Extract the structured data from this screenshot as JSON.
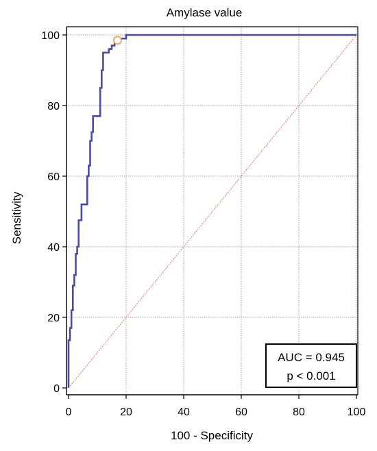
{
  "chart_data": {
    "type": "line",
    "title": "Amylase value",
    "xlabel": "100 - Specificity",
    "ylabel": "Sensitivity",
    "xlim": [
      0,
      100
    ],
    "ylim": [
      0,
      100
    ],
    "xticks": [
      0,
      20,
      40,
      60,
      80,
      100
    ],
    "yticks": [
      0,
      20,
      40,
      60,
      80,
      100
    ],
    "grid": true,
    "series": [
      {
        "name": "",
        "color": "#4a4aa8",
        "points": [
          [
            0,
            0
          ],
          [
            0,
            13.5
          ],
          [
            0.5,
            13.5
          ],
          [
            0.5,
            17
          ],
          [
            1,
            17
          ],
          [
            1,
            22
          ],
          [
            1.5,
            22
          ],
          [
            1.5,
            29
          ],
          [
            2,
            29
          ],
          [
            2,
            32
          ],
          [
            2.5,
            32
          ],
          [
            2.5,
            38
          ],
          [
            3,
            38
          ],
          [
            3,
            40
          ],
          [
            3.5,
            40
          ],
          [
            3.5,
            47.5
          ],
          [
            4.5,
            47.5
          ],
          [
            4.5,
            52
          ],
          [
            6.5,
            52
          ],
          [
            6.5,
            60
          ],
          [
            7,
            60
          ],
          [
            7,
            63
          ],
          [
            7.5,
            63
          ],
          [
            7.5,
            70
          ],
          [
            8,
            70
          ],
          [
            8,
            72.5
          ],
          [
            8.5,
            72.5
          ],
          [
            8.5,
            77
          ],
          [
            11,
            77
          ],
          [
            11,
            85
          ],
          [
            11.5,
            85
          ],
          [
            11.5,
            90
          ],
          [
            12,
            90
          ],
          [
            12,
            95
          ],
          [
            14,
            95
          ],
          [
            14,
            96
          ],
          [
            15,
            96
          ],
          [
            15,
            97
          ],
          [
            16,
            97
          ],
          [
            16,
            98.5
          ],
          [
            17,
            98.5
          ],
          [
            18,
            98.5
          ],
          [
            18,
            99
          ],
          [
            20,
            99
          ],
          [
            20,
            100
          ],
          [
            100,
            100
          ]
        ]
      },
      {
        "name": "",
        "color": "#e07060",
        "dashed": true,
        "points": [
          [
            0,
            0
          ],
          [
            100,
            100
          ]
        ]
      }
    ],
    "cutoff_point": {
      "x": 17,
      "y": 98.5,
      "color": "#f0a050"
    },
    "annotation": {
      "lines": [
        "AUC = 0.945",
        "p < 0.001"
      ],
      "position": "bottom-right"
    }
  }
}
